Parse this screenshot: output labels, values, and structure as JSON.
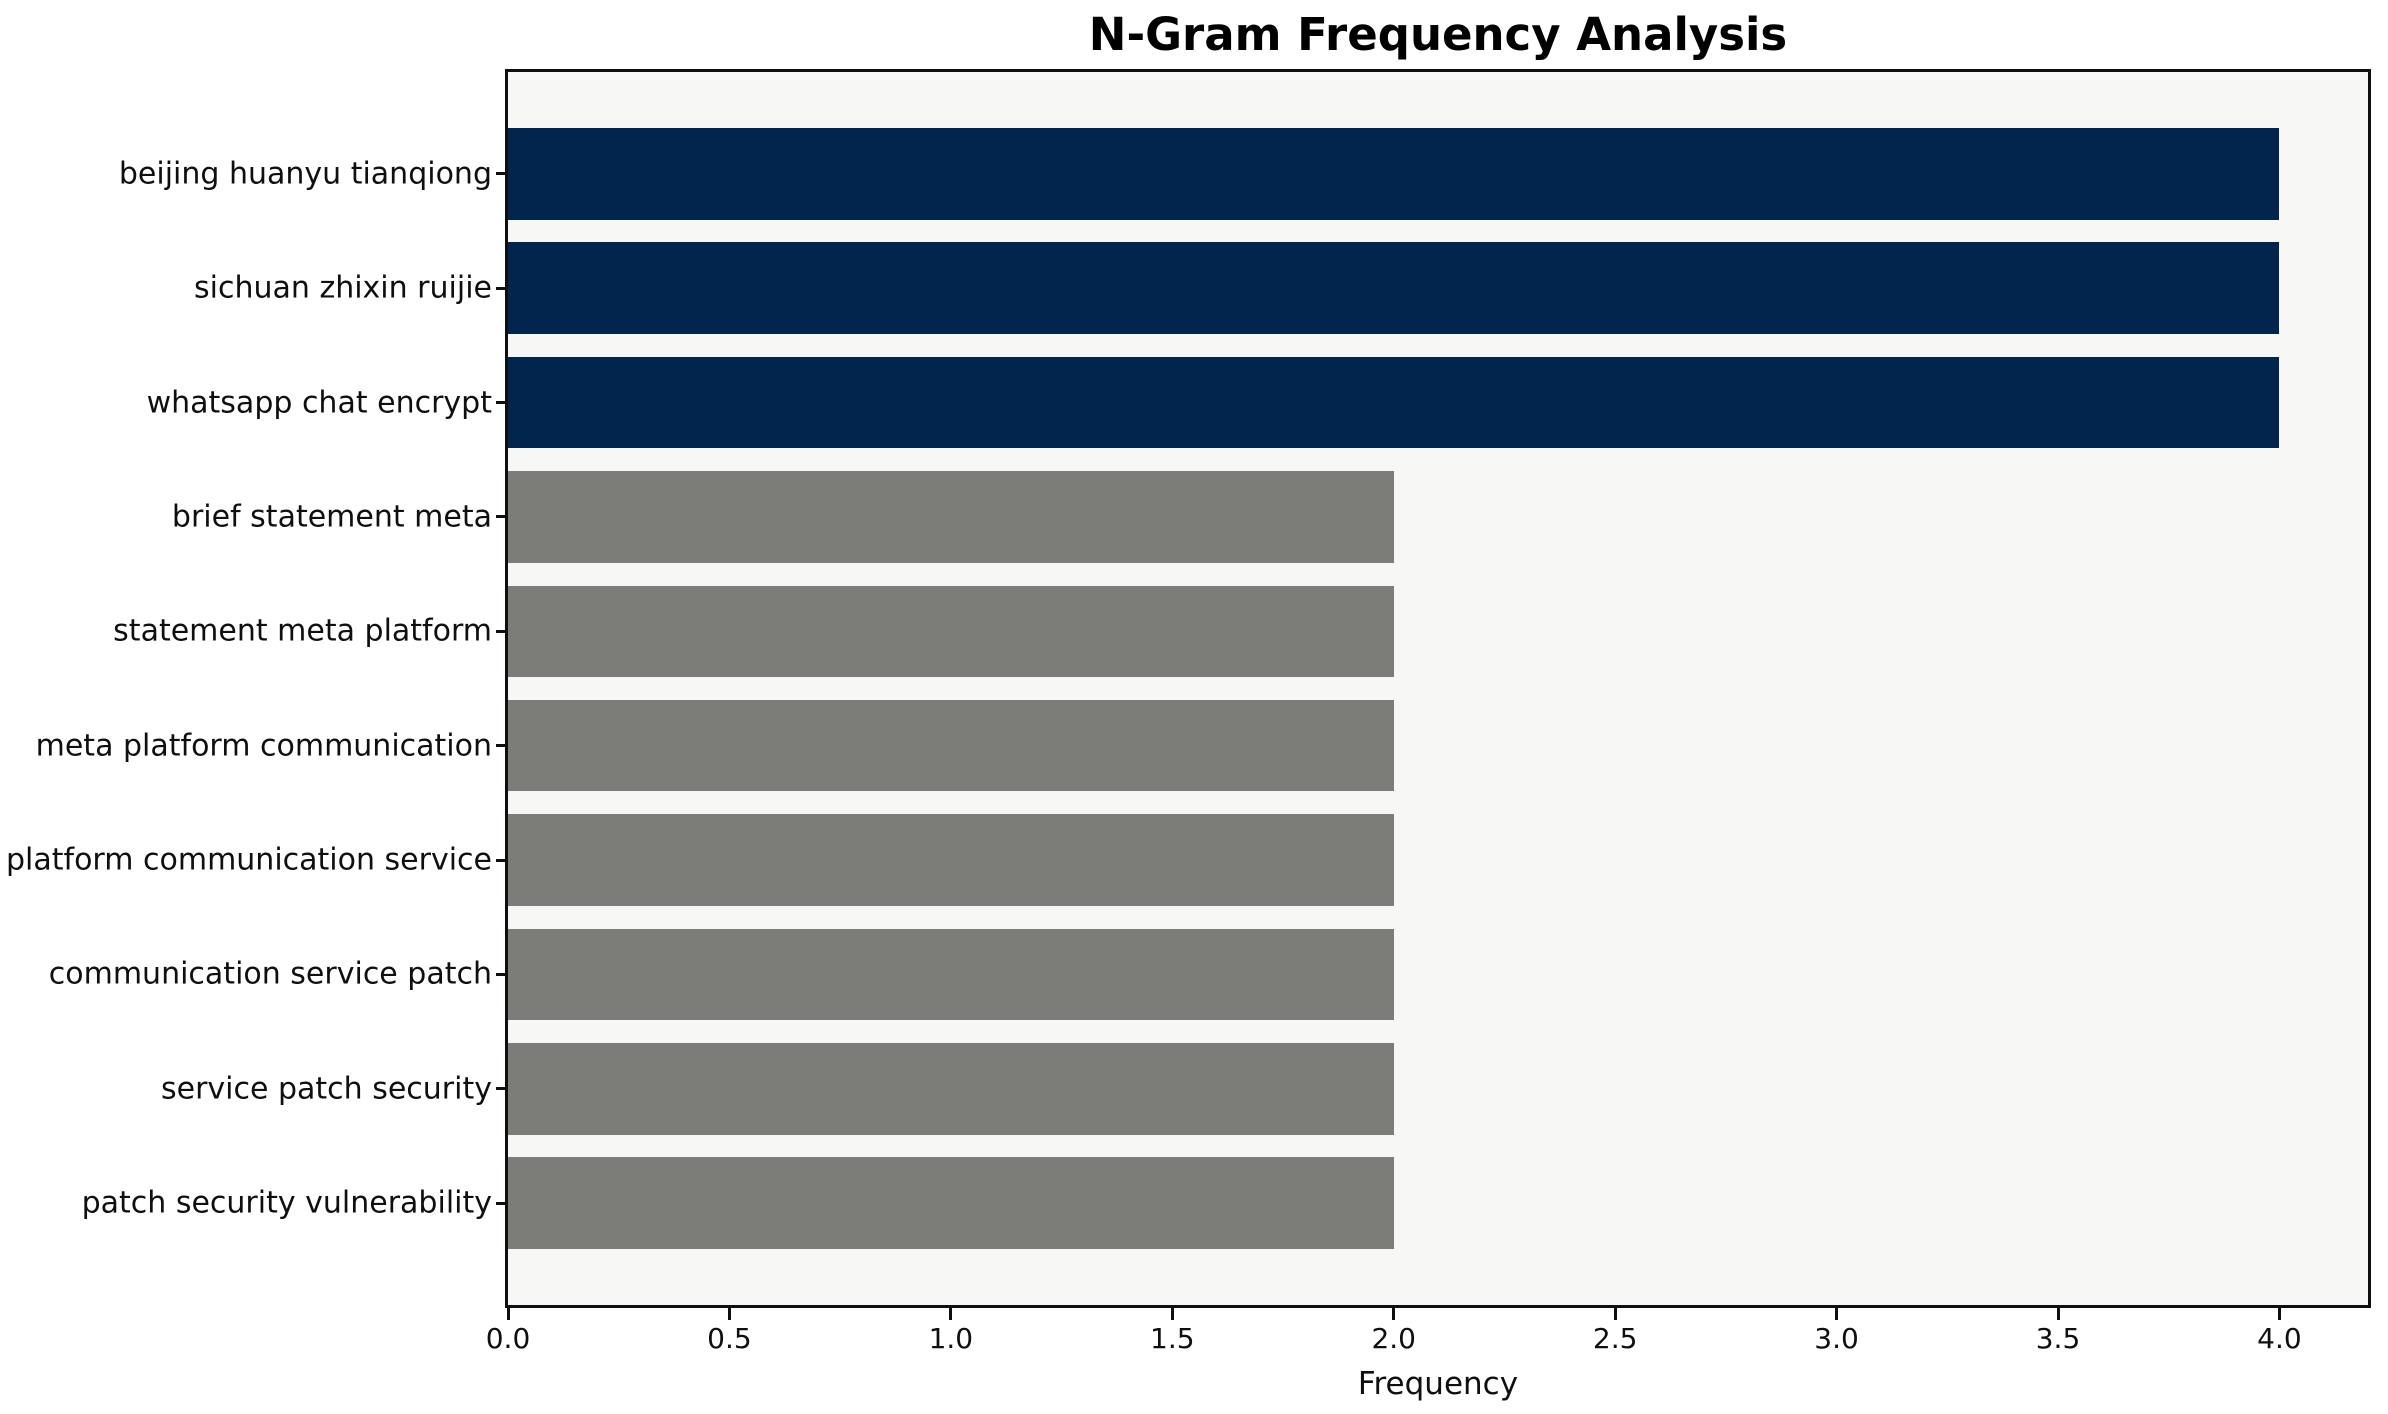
{
  "chart_data": {
    "type": "bar",
    "orientation": "horizontal",
    "title": "N-Gram Frequency Analysis",
    "xlabel": "Frequency",
    "ylabel": "",
    "categories": [
      "beijing huanyu tianqiong",
      "sichuan zhixin ruijie",
      "whatsapp chat encrypt",
      "brief statement meta",
      "statement meta platform",
      "meta platform communication",
      "platform communication service",
      "communication service patch",
      "service patch security",
      "patch security vulnerability"
    ],
    "values": [
      4,
      4,
      4,
      2,
      2,
      2,
      2,
      2,
      2,
      2
    ],
    "bar_colors": [
      "#02254e",
      "#02254e",
      "#02254e",
      "#7c7c79",
      "#7c7c79",
      "#7c7c79",
      "#7c7c79",
      "#7c7c79",
      "#7c7c79",
      "#7c7c79"
    ],
    "xticks": [
      "0.0",
      "0.5",
      "1.0",
      "1.5",
      "2.0",
      "2.5",
      "3.0",
      "3.5",
      "4.0"
    ],
    "xtick_values": [
      0,
      0.5,
      1.0,
      1.5,
      2.0,
      2.5,
      3.0,
      3.5,
      4.0
    ],
    "xlim": [
      0,
      4.2
    ],
    "ylim": [
      -0.89,
      9.89
    ],
    "bar_thickness": 0.8,
    "grid": false,
    "legend": null,
    "plot_background": "#f7f7f6",
    "figure_background": "#ffffff",
    "spine_color": "#0f0f0f"
  }
}
